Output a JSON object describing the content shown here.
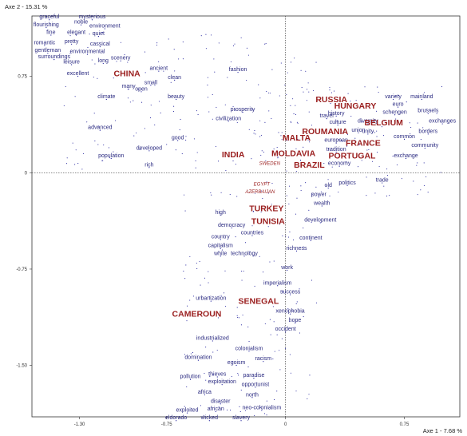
{
  "chart_data": {
    "type": "scatter",
    "xlabel": "Axe 1 - 7.68 %",
    "ylabel": "Axe 2 - 15.31 %",
    "xlim": [
      -1.6,
      1.1
    ],
    "ylim": [
      -1.9,
      1.22
    ],
    "x_ticks": [
      {
        "value": -1.3,
        "label": "-1.30"
      },
      {
        "value": -0.75,
        "label": "-0.75"
      },
      {
        "value": 0,
        "label": "0"
      },
      {
        "value": 0.75,
        "label": "0.75"
      }
    ],
    "y_ticks": [
      {
        "value": 0.75,
        "label": "0.75"
      },
      {
        "value": 0,
        "label": "0"
      },
      {
        "value": -0.75,
        "label": "-0.75"
      },
      {
        "value": -1.5,
        "label": "-1.50"
      }
    ],
    "countries": [
      {
        "label": "CHINA",
        "x": -1.0,
        "y": 0.75
      },
      {
        "label": "RUSSIA",
        "x": 0.29,
        "y": 0.55
      },
      {
        "label": "HUNGARY",
        "x": 0.44,
        "y": 0.5
      },
      {
        "label": "BELGIUM",
        "x": 0.62,
        "y": 0.37
      },
      {
        "label": "MALTA",
        "x": 0.07,
        "y": 0.25
      },
      {
        "label": "ROUMANIA",
        "x": 0.25,
        "y": 0.3
      },
      {
        "label": "FRANCE",
        "x": 0.49,
        "y": 0.21
      },
      {
        "label": "MOLDAVIA",
        "x": 0.05,
        "y": 0.13
      },
      {
        "label": "PORTUGAL",
        "x": 0.42,
        "y": 0.11
      },
      {
        "label": "INDIA",
        "x": -0.33,
        "y": 0.12
      },
      {
        "label": "BRAZIL",
        "x": 0.15,
        "y": 0.04
      },
      {
        "label": "TURKEY",
        "x": -0.12,
        "y": -0.3
      },
      {
        "label": "TUNISIA",
        "x": -0.11,
        "y": -0.4
      },
      {
        "label": "SENEGAL",
        "x": -0.17,
        "y": -1.02
      },
      {
        "label": "CAMEROUN",
        "x": -0.56,
        "y": -1.12
      }
    ],
    "minor_countries": [
      {
        "label": "SWEDEN",
        "x": -0.1,
        "y": 0.06
      },
      {
        "label": "EGYPT",
        "x": -0.15,
        "y": -0.1
      },
      {
        "label": "AZERBAIJAN",
        "x": -0.16,
        "y": -0.16
      }
    ],
    "words": [
      {
        "label": "graceful",
        "x": -1.49,
        "y": 1.2
      },
      {
        "label": "mysterious",
        "x": -1.22,
        "y": 1.2
      },
      {
        "label": "flourishing",
        "x": -1.51,
        "y": 1.14
      },
      {
        "label": "noble",
        "x": -1.29,
        "y": 1.16
      },
      {
        "label": "environment",
        "x": -1.14,
        "y": 1.13
      },
      {
        "label": "fine",
        "x": -1.48,
        "y": 1.08
      },
      {
        "label": "elegant",
        "x": -1.32,
        "y": 1.08
      },
      {
        "label": "quiet",
        "x": -1.18,
        "y": 1.07
      },
      {
        "label": "romantic",
        "x": -1.52,
        "y": 1.0
      },
      {
        "label": "pretty",
        "x": -1.35,
        "y": 1.01
      },
      {
        "label": "cassical",
        "x": -1.17,
        "y": 0.99
      },
      {
        "label": "gentleman",
        "x": -1.5,
        "y": 0.94
      },
      {
        "label": "environmental",
        "x": -1.25,
        "y": 0.93
      },
      {
        "label": "surroundings",
        "x": -1.46,
        "y": 0.89
      },
      {
        "label": "leisure",
        "x": -1.35,
        "y": 0.85
      },
      {
        "label": "long",
        "x": -1.15,
        "y": 0.86
      },
      {
        "label": "scenery",
        "x": -1.04,
        "y": 0.88
      },
      {
        "label": "excellent",
        "x": -1.31,
        "y": 0.76
      },
      {
        "label": "ancient",
        "x": -0.8,
        "y": 0.8
      },
      {
        "label": "fashion",
        "x": -0.3,
        "y": 0.79
      },
      {
        "label": "small",
        "x": -0.85,
        "y": 0.69
      },
      {
        "label": "clean",
        "x": -0.7,
        "y": 0.73
      },
      {
        "label": "many",
        "x": -0.99,
        "y": 0.66
      },
      {
        "label": "open",
        "x": -0.91,
        "y": 0.64
      },
      {
        "label": "climate",
        "x": -1.13,
        "y": 0.58
      },
      {
        "label": "beauty",
        "x": -0.69,
        "y": 0.58
      },
      {
        "label": "prosperity",
        "x": -0.27,
        "y": 0.48
      },
      {
        "label": "civilization",
        "x": -0.36,
        "y": 0.41
      },
      {
        "label": "advanced",
        "x": -1.17,
        "y": 0.34
      },
      {
        "label": "good",
        "x": -0.68,
        "y": 0.26
      },
      {
        "label": "developed",
        "x": -0.86,
        "y": 0.18
      },
      {
        "label": "population",
        "x": -1.1,
        "y": 0.12
      },
      {
        "label": "rich",
        "x": -0.86,
        "y": 0.05
      },
      {
        "label": "variety",
        "x": 0.68,
        "y": 0.58
      },
      {
        "label": "mainland",
        "x": 0.86,
        "y": 0.58
      },
      {
        "label": "euro",
        "x": 0.71,
        "y": 0.52
      },
      {
        "label": "schengen",
        "x": 0.69,
        "y": 0.46
      },
      {
        "label": "brussels",
        "x": 0.9,
        "y": 0.47
      },
      {
        "label": "history",
        "x": 0.32,
        "y": 0.45
      },
      {
        "label": "travel",
        "x": 0.26,
        "y": 0.43
      },
      {
        "label": "diversity",
        "x": 0.52,
        "y": 0.39
      },
      {
        "label": "union",
        "x": 0.46,
        "y": 0.32
      },
      {
        "label": "exchanges",
        "x": 0.99,
        "y": 0.39
      },
      {
        "label": "culture",
        "x": 0.33,
        "y": 0.38
      },
      {
        "label": "borders",
        "x": 0.9,
        "y": 0.31
      },
      {
        "label": "unity",
        "x": 0.52,
        "y": 0.31
      },
      {
        "label": "common",
        "x": 0.75,
        "y": 0.27
      },
      {
        "label": "european",
        "x": 0.32,
        "y": 0.24
      },
      {
        "label": "community",
        "x": 0.88,
        "y": 0.2
      },
      {
        "label": "tradition",
        "x": 0.32,
        "y": 0.17
      },
      {
        "label": "exchange",
        "x": 0.76,
        "y": 0.12
      },
      {
        "label": "economy",
        "x": 0.34,
        "y": 0.06
      },
      {
        "label": "trade",
        "x": 0.61,
        "y": -0.07
      },
      {
        "label": "politics",
        "x": 0.39,
        "y": -0.09
      },
      {
        "label": "old",
        "x": 0.27,
        "y": -0.11
      },
      {
        "label": "power",
        "x": 0.21,
        "y": -0.18
      },
      {
        "label": "wealth",
        "x": 0.23,
        "y": -0.25
      },
      {
        "label": "high",
        "x": -0.41,
        "y": -0.32
      },
      {
        "label": "development",
        "x": 0.22,
        "y": -0.38
      },
      {
        "label": "democracy",
        "x": -0.34,
        "y": -0.42
      },
      {
        "label": "country",
        "x": -0.41,
        "y": -0.51
      },
      {
        "label": "countries",
        "x": -0.21,
        "y": -0.48
      },
      {
        "label": "continent",
        "x": 0.16,
        "y": -0.52
      },
      {
        "label": "capitalism",
        "x": -0.41,
        "y": -0.58
      },
      {
        "label": "richness",
        "x": 0.07,
        "y": -0.6
      },
      {
        "label": "white",
        "x": -0.41,
        "y": -0.64
      },
      {
        "label": "technology",
        "x": -0.26,
        "y": -0.64
      },
      {
        "label": "work",
        "x": 0.01,
        "y": -0.75
      },
      {
        "label": "imperialism",
        "x": -0.05,
        "y": -0.87
      },
      {
        "label": "success",
        "x": 0.03,
        "y": -0.94
      },
      {
        "label": "urbanization",
        "x": -0.47,
        "y": -0.99
      },
      {
        "label": "xenophobia",
        "x": 0.03,
        "y": -1.09
      },
      {
        "label": "hope",
        "x": 0.06,
        "y": -1.16
      },
      {
        "label": "occident",
        "x": 0.0,
        "y": -1.23
      },
      {
        "label": "industrialized",
        "x": -0.46,
        "y": -1.3
      },
      {
        "label": "colonialism",
        "x": -0.23,
        "y": -1.38
      },
      {
        "label": "domination",
        "x": -0.55,
        "y": -1.45
      },
      {
        "label": "egoism",
        "x": -0.31,
        "y": -1.49
      },
      {
        "label": "racism",
        "x": -0.14,
        "y": -1.46
      },
      {
        "label": "pollution",
        "x": -0.6,
        "y": -1.6
      },
      {
        "label": "thieves",
        "x": -0.43,
        "y": -1.58
      },
      {
        "label": "paradise",
        "x": -0.2,
        "y": -1.59
      },
      {
        "label": "exploitation",
        "x": -0.4,
        "y": -1.64
      },
      {
        "label": "opportunist",
        "x": -0.19,
        "y": -1.66
      },
      {
        "label": "africa",
        "x": -0.51,
        "y": -1.72
      },
      {
        "label": "north",
        "x": -0.21,
        "y": -1.74
      },
      {
        "label": "disaster",
        "x": -0.41,
        "y": -1.79
      },
      {
        "label": "exploited",
        "x": -0.62,
        "y": -1.86
      },
      {
        "label": "african",
        "x": -0.44,
        "y": -1.85
      },
      {
        "label": "neo-colonialism",
        "x": -0.15,
        "y": -1.84
      },
      {
        "label": "eldorado",
        "x": -0.69,
        "y": -1.92
      },
      {
        "label": "wicked",
        "x": -0.48,
        "y": -1.92
      },
      {
        "label": "slavery",
        "x": -0.28,
        "y": -1.92
      }
    ]
  },
  "style": {
    "word_color": "#2a2a80",
    "country_color": "#9a1e1e",
    "point_color": "#1a1a9a",
    "axis_color": "#222222"
  }
}
